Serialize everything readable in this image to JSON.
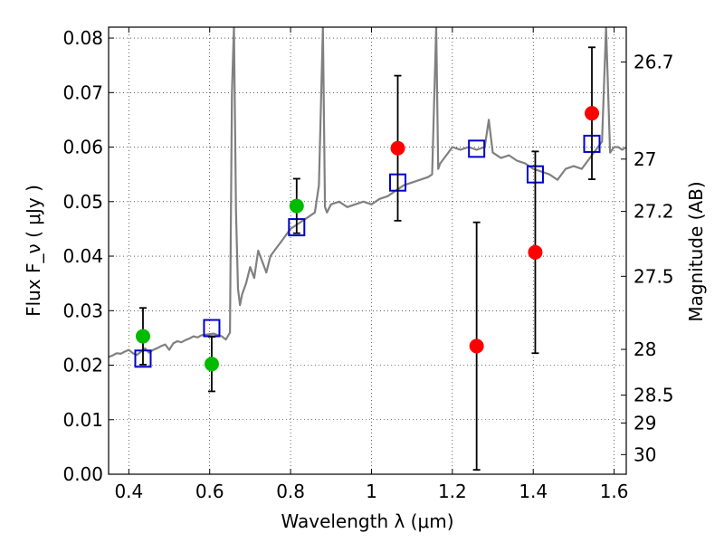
{
  "chart_data": {
    "type": "scatter",
    "xlabel": "Wavelength  λ (μm)",
    "ylabel": "Flux  F_ν  ( μJy )",
    "ylabel_right": "Magnitude (AB)",
    "xlim": [
      0.35,
      1.63
    ],
    "ylim": [
      0.0,
      0.082
    ],
    "grid": true,
    "x_ticks": [
      0.4,
      0.6,
      0.8,
      1.0,
      1.2,
      1.4,
      1.6
    ],
    "x_tick_labels": [
      "0.4",
      "0.6",
      "0.8",
      "1",
      "1.2",
      "1.4",
      "1.6"
    ],
    "y_ticks": [
      0.0,
      0.01,
      0.02,
      0.03,
      0.04,
      0.05,
      0.06,
      0.07,
      0.08
    ],
    "y_tick_labels": [
      "0.00",
      "0.01",
      "0.02",
      "0.03",
      "0.04",
      "0.05",
      "0.06",
      "0.07",
      "0.08"
    ],
    "mag_ticks": [
      {
        "label": "26.7",
        "flux": 0.0756
      },
      {
        "label": "27",
        "flux": 0.0578
      },
      {
        "label": "27.2",
        "flux": 0.0482
      },
      {
        "label": "27.5",
        "flux": 0.0363
      },
      {
        "label": "28",
        "flux": 0.0229
      },
      {
        "label": "28.5",
        "flux": 0.0145
      },
      {
        "label": "29",
        "flux": 0.0094
      },
      {
        "label": "30",
        "flux": 0.0036
      }
    ],
    "series": [
      {
        "type": "line",
        "color": "#808080",
        "x": [
          0.35,
          0.36,
          0.37,
          0.38,
          0.39,
          0.4,
          0.41,
          0.42,
          0.43,
          0.44,
          0.45,
          0.46,
          0.47,
          0.48,
          0.49,
          0.5,
          0.51,
          0.52,
          0.53,
          0.54,
          0.55,
          0.56,
          0.57,
          0.58,
          0.59,
          0.6,
          0.61,
          0.62,
          0.63,
          0.64,
          0.65,
          0.655,
          0.66,
          0.665,
          0.67,
          0.675,
          0.68,
          0.69,
          0.7,
          0.71,
          0.72,
          0.73,
          0.74,
          0.75,
          0.76,
          0.77,
          0.78,
          0.79,
          0.8,
          0.82,
          0.84,
          0.86,
          0.87,
          0.88,
          0.885,
          0.89,
          0.9,
          0.92,
          0.94,
          0.96,
          0.98,
          1.0,
          1.02,
          1.04,
          1.06,
          1.08,
          1.1,
          1.12,
          1.14,
          1.15,
          1.16,
          1.165,
          1.17,
          1.18,
          1.19,
          1.2,
          1.22,
          1.24,
          1.26,
          1.28,
          1.29,
          1.3,
          1.32,
          1.34,
          1.36,
          1.38,
          1.4,
          1.42,
          1.44,
          1.46,
          1.48,
          1.5,
          1.52,
          1.54,
          1.56,
          1.57,
          1.58,
          1.59,
          1.6,
          1.61,
          1.62,
          1.63
        ],
        "y": [
          0.0215,
          0.0218,
          0.0222,
          0.0221,
          0.0225,
          0.0228,
          0.0222,
          0.0219,
          0.0225,
          0.0231,
          0.0223,
          0.0228,
          0.0231,
          0.0235,
          0.0238,
          0.0228,
          0.024,
          0.0244,
          0.0242,
          0.0246,
          0.0249,
          0.0253,
          0.0251,
          0.0255,
          0.0256,
          0.0257,
          0.0258,
          0.0255,
          0.0253,
          0.0247,
          0.026,
          0.07,
          0.082,
          0.048,
          0.034,
          0.031,
          0.033,
          0.035,
          0.038,
          0.036,
          0.041,
          0.039,
          0.037,
          0.04,
          0.041,
          0.042,
          0.043,
          0.044,
          0.045,
          0.046,
          0.047,
          0.048,
          0.053,
          0.082,
          0.049,
          0.048,
          0.0495,
          0.05,
          0.049,
          0.0495,
          0.05,
          0.0495,
          0.0505,
          0.051,
          0.052,
          0.053,
          0.0535,
          0.054,
          0.0545,
          0.055,
          0.082,
          0.056,
          0.057,
          0.058,
          0.059,
          0.06,
          0.0595,
          0.06,
          0.0595,
          0.06,
          0.065,
          0.059,
          0.058,
          0.0585,
          0.0575,
          0.057,
          0.056,
          0.0555,
          0.055,
          0.054,
          0.056,
          0.0565,
          0.056,
          0.058,
          0.06,
          0.061,
          0.082,
          0.059,
          0.06,
          0.06,
          0.0595,
          0.06
        ]
      },
      {
        "type": "scatter",
        "marker": "square",
        "color": "#0000cc",
        "x": [
          0.435,
          0.605,
          0.815,
          1.065,
          1.26,
          1.405,
          1.545
        ],
        "y": [
          0.0212,
          0.0268,
          0.0453,
          0.0535,
          0.0597,
          0.055,
          0.0606
        ]
      },
      {
        "type": "scatter",
        "marker": "circle",
        "color": "#00bb00",
        "x": [
          0.435,
          0.605,
          0.815
        ],
        "y": [
          0.0253,
          0.0202,
          0.0492
        ],
        "yerr": [
          0.0052,
          0.005,
          0.005
        ]
      },
      {
        "type": "scatter",
        "marker": "circle",
        "color": "#ff0000",
        "x": [
          1.065,
          1.26,
          1.405,
          1.545
        ],
        "y": [
          0.0598,
          0.0235,
          0.0407,
          0.0662
        ],
        "yerr": [
          0.0133,
          0.0227,
          0.0185,
          0.0121
        ]
      }
    ]
  }
}
